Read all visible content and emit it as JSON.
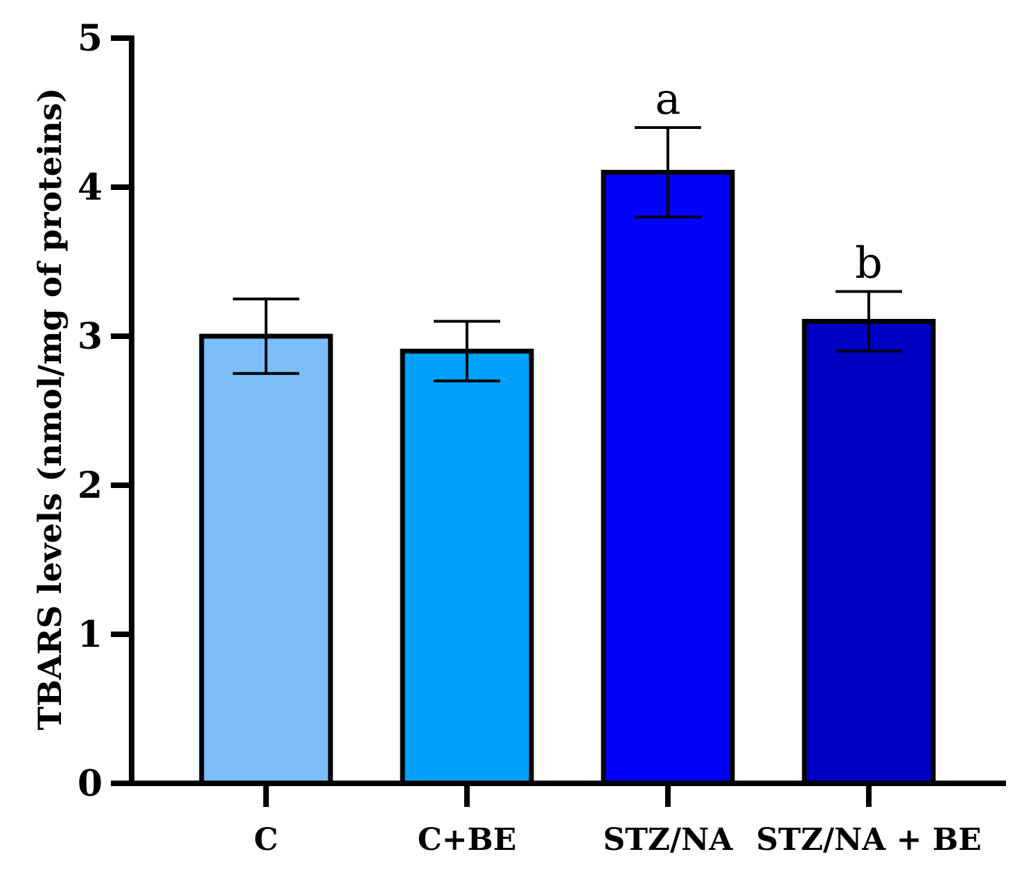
{
  "chart_data": {
    "type": "bar",
    "categories": [
      "C",
      "C+BE",
      "STZ/NA",
      "STZ/NA + BE"
    ],
    "values": [
      3.0,
      2.9,
      4.1,
      3.1
    ],
    "errors": [
      0.25,
      0.2,
      0.3,
      0.2
    ],
    "colors": [
      "#7bbefa",
      "#00a2fb",
      "#0000fd",
      "#0000c4"
    ],
    "annotations": [
      "",
      "",
      "a",
      "b"
    ],
    "title": "",
    "xlabel": "",
    "ylabel": "TBARS levels  (nmol/mg of proteins)",
    "ylim": [
      0,
      5
    ],
    "yticks": [
      0,
      1,
      2,
      3,
      4,
      5
    ],
    "grid": false,
    "legend": "none"
  }
}
